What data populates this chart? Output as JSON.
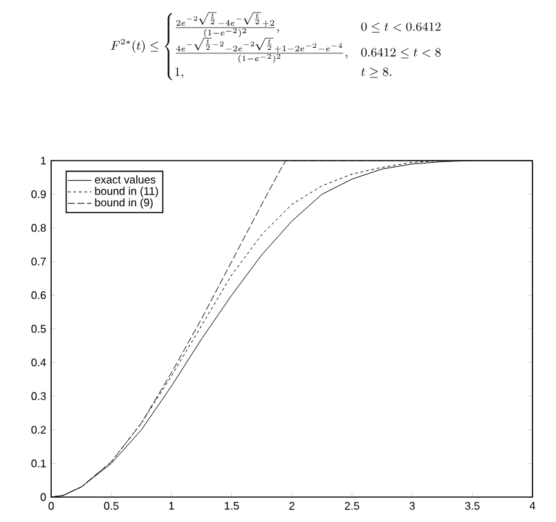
{
  "chart_data": {
    "type": "line",
    "annotations": [
      "F^{2*}(t) \\le \\begin{cases} \\frac{2e^{-2\\sqrt{\\frac{t}{2}}}-4e^{-\\sqrt{\\frac{t}{2}}}+2}{(1-e^{-2})^2}, & 0 \\le t < 0.6412\\\\ \\frac{4e^{-\\sqrt{\\frac{t}{2}}-2}-2e^{-2\\sqrt{\\frac{t}{2}}}+1-2e^{-2}-e^{-4}}{(1-e^{-2})^2}, & 0.6412 \\le t < 8\\\\ 1, & t \\ge 8. \\end{cases}"
    ],
    "series": [
      {
        "name": "exact values",
        "color": "#000000",
        "line_style": "solid",
        "x": [
          0,
          0.1,
          0.25,
          0.5,
          0.75,
          1.0,
          1.25,
          1.5,
          1.75,
          2.0,
          2.25,
          2.5,
          2.75,
          3.0,
          3.25,
          3.5,
          4.0
        ],
        "values": [
          0,
          0.005,
          0.03,
          0.1,
          0.2,
          0.33,
          0.47,
          0.6,
          0.72,
          0.82,
          0.9,
          0.945,
          0.975,
          0.99,
          0.997,
          1,
          1
        ]
      },
      {
        "name": "bound in (11)",
        "color": "#000000",
        "line_style": "dashed",
        "x": [
          0,
          0.1,
          0.25,
          0.5,
          0.75,
          1.0,
          1.25,
          1.5,
          1.75,
          2.0,
          2.25,
          2.5,
          2.75,
          3.0,
          3.25,
          3.5,
          4.0
        ],
        "values": [
          0,
          0.005,
          0.03,
          0.105,
          0.22,
          0.36,
          0.51,
          0.66,
          0.78,
          0.87,
          0.925,
          0.96,
          0.98,
          0.995,
          1,
          1,
          1
        ]
      },
      {
        "name": "bound in (9)",
        "color": "#000000",
        "line_style": "dashdot",
        "x": [
          0,
          0.1,
          0.25,
          0.5,
          0.75,
          1.0,
          1.25,
          1.5,
          1.75,
          1.9,
          1.95,
          2.0,
          2.5,
          3.0,
          3.5,
          4.0
        ],
        "values": [
          0,
          0.005,
          0.03,
          0.105,
          0.22,
          0.37,
          0.53,
          0.7,
          0.87,
          0.97,
          1,
          1,
          1,
          1,
          1,
          1
        ]
      }
    ],
    "xlim": [
      0,
      4
    ],
    "ylim": [
      0,
      1
    ],
    "xticks": [
      0,
      0.5,
      1,
      1.5,
      2,
      2.5,
      3,
      3.5,
      4
    ],
    "yticks": [
      0,
      0.1,
      0.2,
      0.3,
      0.4,
      0.5,
      0.6,
      0.7,
      0.8,
      0.9,
      1
    ],
    "grid": false,
    "legend": "top left",
    "marker": "none"
  }
}
